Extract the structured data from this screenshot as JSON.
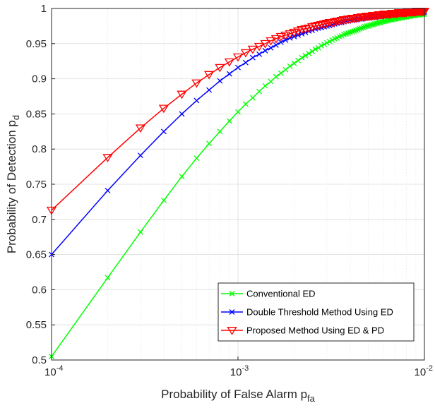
{
  "chart_data": {
    "type": "line",
    "xscale": "log",
    "xlim": [
      0.0001,
      0.01
    ],
    "ylim": [
      0.5,
      1
    ],
    "grid": true,
    "xlabel": "Probability of False Alarm p",
    "xlabel_subscript": "fa",
    "ylabel": "Probability of Detection p",
    "ylabel_subscript": "d",
    "legend_position": "bottom-right",
    "x_ticks": [
      {
        "value": 0.0001,
        "base": "10",
        "exp": "-4"
      },
      {
        "value": 0.001,
        "base": "10",
        "exp": "-3"
      },
      {
        "value": 0.01,
        "base": "10",
        "exp": "-2"
      }
    ],
    "y_ticks": [
      {
        "value": 0.5,
        "label": "0.5"
      },
      {
        "value": 0.55,
        "label": "0.55"
      },
      {
        "value": 0.6,
        "label": "0.6"
      },
      {
        "value": 0.65,
        "label": "0.65"
      },
      {
        "value": 0.7,
        "label": "0.7"
      },
      {
        "value": 0.75,
        "label": "0.75"
      },
      {
        "value": 0.8,
        "label": "0.8"
      },
      {
        "value": 0.85,
        "label": "0.85"
      },
      {
        "value": 0.9,
        "label": "0.9"
      },
      {
        "value": 0.95,
        "label": "0.95"
      },
      {
        "value": 1,
        "label": "1"
      }
    ],
    "x": [
      0.0001,
      0.0002,
      0.0003,
      0.0004,
      0.0005,
      0.0006,
      0.0007,
      0.0008,
      0.0009,
      0.001,
      0.0011,
      0.0012,
      0.0013,
      0.0014,
      0.0015,
      0.0016,
      0.0017,
      0.0018,
      0.0019,
      0.002,
      0.0021,
      0.0022,
      0.0023,
      0.0024,
      0.0025,
      0.0026,
      0.0027,
      0.0028,
      0.0029,
      0.003,
      0.0031,
      0.0032,
      0.0033,
      0.0034,
      0.0035,
      0.0036,
      0.0037,
      0.0038,
      0.0039,
      0.004,
      0.0041,
      0.0042,
      0.0043,
      0.0044,
      0.0045,
      0.0046,
      0.0047,
      0.0048,
      0.0049,
      0.005,
      0.0051,
      0.0052,
      0.0053,
      0.0054,
      0.0055,
      0.0056,
      0.0057,
      0.0058,
      0.0059,
      0.006,
      0.0061,
      0.0062,
      0.0063,
      0.0064,
      0.0065,
      0.0066,
      0.0067,
      0.0068,
      0.0069,
      0.007,
      0.0071,
      0.0072,
      0.0073,
      0.0074,
      0.0075,
      0.0076,
      0.0077,
      0.0078,
      0.0079,
      0.008,
      0.0081,
      0.0082,
      0.0083,
      0.0084,
      0.0085,
      0.0086,
      0.0087,
      0.0088,
      0.0089,
      0.009,
      0.0091,
      0.0092,
      0.0093,
      0.0094,
      0.0095,
      0.0096,
      0.0097,
      0.0098,
      0.0099,
      0.01
    ],
    "series": [
      {
        "name": "Conventional ED",
        "color": "#00ff00",
        "marker": "x",
        "values": [
          0.505,
          0.617,
          0.682,
          0.727,
          0.761,
          0.787,
          0.808,
          0.825,
          0.84,
          0.853,
          0.864,
          0.873,
          0.882,
          0.89,
          0.896,
          0.903,
          0.908,
          0.913,
          0.918,
          0.922,
          0.926,
          0.93,
          0.933,
          0.936,
          0.939,
          0.942,
          0.944,
          0.947,
          0.949,
          0.951,
          0.953,
          0.955,
          0.957,
          0.958,
          0.96,
          0.961,
          0.963,
          0.964,
          0.965,
          0.966,
          0.967,
          0.968,
          0.969,
          0.97,
          0.971,
          0.972,
          0.973,
          0.974,
          0.975,
          0.975,
          0.976,
          0.977,
          0.977,
          0.978,
          0.979,
          0.979,
          0.98,
          0.98,
          0.981,
          0.981,
          0.982,
          0.982,
          0.983,
          0.983,
          0.984,
          0.984,
          0.984,
          0.985,
          0.985,
          0.985,
          0.986,
          0.986,
          0.986,
          0.987,
          0.987,
          0.987,
          0.988,
          0.988,
          0.988,
          0.988,
          0.989,
          0.989,
          0.989,
          0.989,
          0.99,
          0.99,
          0.99,
          0.99,
          0.99,
          0.991,
          0.991,
          0.991,
          0.991,
          0.991,
          0.991,
          0.992,
          0.992,
          0.992,
          0.992,
          0.992
        ]
      },
      {
        "name": "Double Threshold Method Using ED",
        "color": "#0000ff",
        "marker": "x",
        "values": [
          0.65,
          0.741,
          0.791,
          0.825,
          0.85,
          0.869,
          0.884,
          0.897,
          0.907,
          0.916,
          0.923,
          0.93,
          0.935,
          0.94,
          0.944,
          0.948,
          0.952,
          0.955,
          0.958,
          0.96,
          0.962,
          0.964,
          0.966,
          0.968,
          0.969,
          0.971,
          0.972,
          0.973,
          0.974,
          0.975,
          0.976,
          0.977,
          0.978,
          0.979,
          0.98,
          0.98,
          0.981,
          0.982,
          0.982,
          0.983,
          0.983,
          0.984,
          0.984,
          0.985,
          0.985,
          0.985,
          0.986,
          0.986,
          0.987,
          0.987,
          0.987,
          0.988,
          0.988,
          0.988,
          0.988,
          0.989,
          0.989,
          0.989,
          0.989,
          0.99,
          0.99,
          0.99,
          0.99,
          0.991,
          0.991,
          0.991,
          0.991,
          0.991,
          0.991,
          0.992,
          0.992,
          0.992,
          0.992,
          0.992,
          0.992,
          0.993,
          0.993,
          0.993,
          0.993,
          0.993,
          0.993,
          0.993,
          0.993,
          0.994,
          0.994,
          0.994,
          0.994,
          0.994,
          0.994,
          0.994,
          0.994,
          0.994,
          0.995,
          0.995,
          0.995,
          0.995,
          0.995,
          0.995,
          0.995,
          0.995
        ]
      },
      {
        "name": "Proposed Method Using ED & PD",
        "color": "#ff0000",
        "marker": "triangle-down",
        "values": [
          0.713,
          0.788,
          0.83,
          0.858,
          0.878,
          0.894,
          0.906,
          0.916,
          0.924,
          0.931,
          0.937,
          0.942,
          0.946,
          0.95,
          0.954,
          0.957,
          0.96,
          0.962,
          0.964,
          0.966,
          0.968,
          0.97,
          0.971,
          0.972,
          0.974,
          0.975,
          0.976,
          0.977,
          0.978,
          0.979,
          0.98,
          0.98,
          0.981,
          0.982,
          0.982,
          0.983,
          0.984,
          0.984,
          0.985,
          0.985,
          0.986,
          0.986,
          0.986,
          0.987,
          0.987,
          0.988,
          0.988,
          0.988,
          0.989,
          0.989,
          0.989,
          0.989,
          0.99,
          0.99,
          0.99,
          0.99,
          0.991,
          0.991,
          0.991,
          0.991,
          0.992,
          0.992,
          0.992,
          0.992,
          0.992,
          0.992,
          0.993,
          0.993,
          0.993,
          0.993,
          0.993,
          0.993,
          0.994,
          0.994,
          0.994,
          0.994,
          0.994,
          0.994,
          0.994,
          0.994,
          0.995,
          0.995,
          0.995,
          0.995,
          0.995,
          0.995,
          0.995,
          0.995,
          0.995,
          0.995,
          0.996,
          0.996,
          0.996,
          0.996,
          0.996,
          0.996,
          0.996,
          0.996,
          0.996,
          0.996
        ]
      }
    ]
  }
}
